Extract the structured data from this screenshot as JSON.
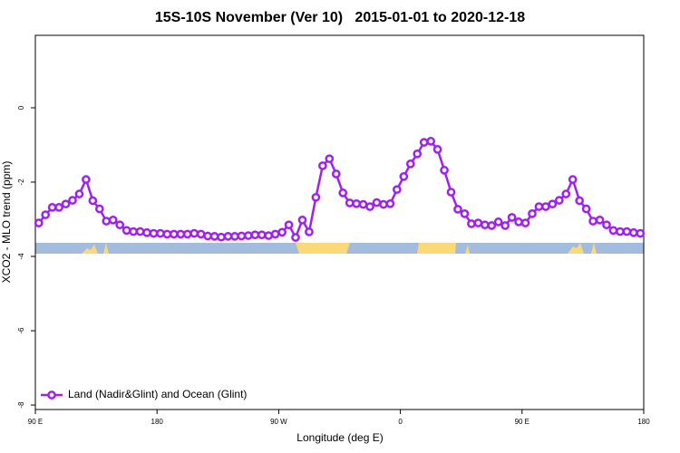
{
  "chart_data": {
    "type": "line",
    "title": "15S-10S November (Ver 10)   2015-01-01 to 2020-12-18",
    "xlabel": "Longitude (deg E)",
    "ylabel": "XCO2 - MLO trend (ppm)",
    "xlim": [
      90,
      540
    ],
    "ylim": [
      -8.12,
      1.95
    ],
    "xticks": [
      {
        "value": 90,
        "label": "90 E"
      },
      180,
      {
        "value": 270,
        "label": "90 W"
      },
      {
        "value": 360,
        "label": "0"
      },
      {
        "value": 450,
        "label": "90 E"
      },
      {
        "value": 540,
        "label": "180"
      }
    ],
    "yticks": [
      0,
      -2,
      -4,
      -6,
      -8
    ],
    "legend": "bottomleft",
    "x": [
      92.5,
      97.5,
      102.5,
      107.5,
      112.5,
      117.5,
      122.5,
      127.5,
      132.5,
      137.5,
      142.5,
      147.5,
      152.5,
      157.5,
      162.5,
      167.5,
      172.5,
      177.5,
      182.5,
      187.5,
      192.5,
      197.5,
      202.5,
      207.5,
      212.5,
      217.5,
      222.5,
      227.5,
      232.5,
      237.5,
      242.5,
      247.5,
      252.5,
      257.5,
      262.5,
      267.5,
      272.5,
      277.5,
      282.5,
      287.5,
      292.5,
      297.5,
      302.5,
      307.5,
      312.5,
      317.5,
      322.5,
      327.5,
      332.5,
      337.5,
      342.5,
      347.5,
      352.5,
      357.5,
      362.5,
      367.5,
      372.5,
      377.5,
      382.5,
      387.5,
      392.5,
      397.5,
      402.5,
      407.5,
      412.5,
      417.5,
      422.5,
      427.5,
      432.5,
      437.5,
      442.5,
      447.5,
      452.5,
      457.5,
      462.5,
      467.5,
      472.5,
      477.5,
      482.5,
      487.5,
      492.5,
      497.5,
      502.5,
      507.5,
      512.5,
      517.5,
      522.5,
      527.5,
      532.5,
      537.5
    ],
    "series": [
      {
        "name": "Land (Nadir&Glint) and Ocean (Glint)",
        "color": "#a020f0",
        "values": [
          -3.1,
          -2.88,
          -2.68,
          -2.68,
          -2.59,
          -2.49,
          -2.32,
          -1.93,
          -2.5,
          -2.72,
          -3.05,
          -3.02,
          -3.15,
          -3.3,
          -3.33,
          -3.33,
          -3.36,
          -3.38,
          -3.38,
          -3.4,
          -3.4,
          -3.4,
          -3.4,
          -3.38,
          -3.4,
          -3.45,
          -3.46,
          -3.48,
          -3.46,
          -3.46,
          -3.45,
          -3.44,
          -3.42,
          -3.42,
          -3.44,
          -3.4,
          -3.35,
          -3.15,
          -3.49,
          -3.02,
          -3.34,
          -2.41,
          -1.56,
          -1.37,
          -1.78,
          -2.29,
          -2.56,
          -2.58,
          -2.6,
          -2.66,
          -2.55,
          -2.6,
          -2.58,
          -2.2,
          -1.85,
          -1.51,
          -1.24,
          -0.93,
          -0.9,
          -1.12,
          -1.68,
          -2.27,
          -2.73,
          -2.85,
          -3.12,
          -3.1,
          -3.15,
          -3.17,
          -3.07,
          -3.17,
          -2.95,
          -3.07,
          -3.1,
          -2.85,
          -2.66,
          -2.66,
          -2.59,
          -2.49,
          -2.32,
          -1.93,
          -2.5,
          -2.72,
          -3.05,
          -3.02,
          -3.15,
          -3.3,
          -3.33,
          -3.33,
          -3.36,
          -3.38
        ]
      }
    ]
  }
}
